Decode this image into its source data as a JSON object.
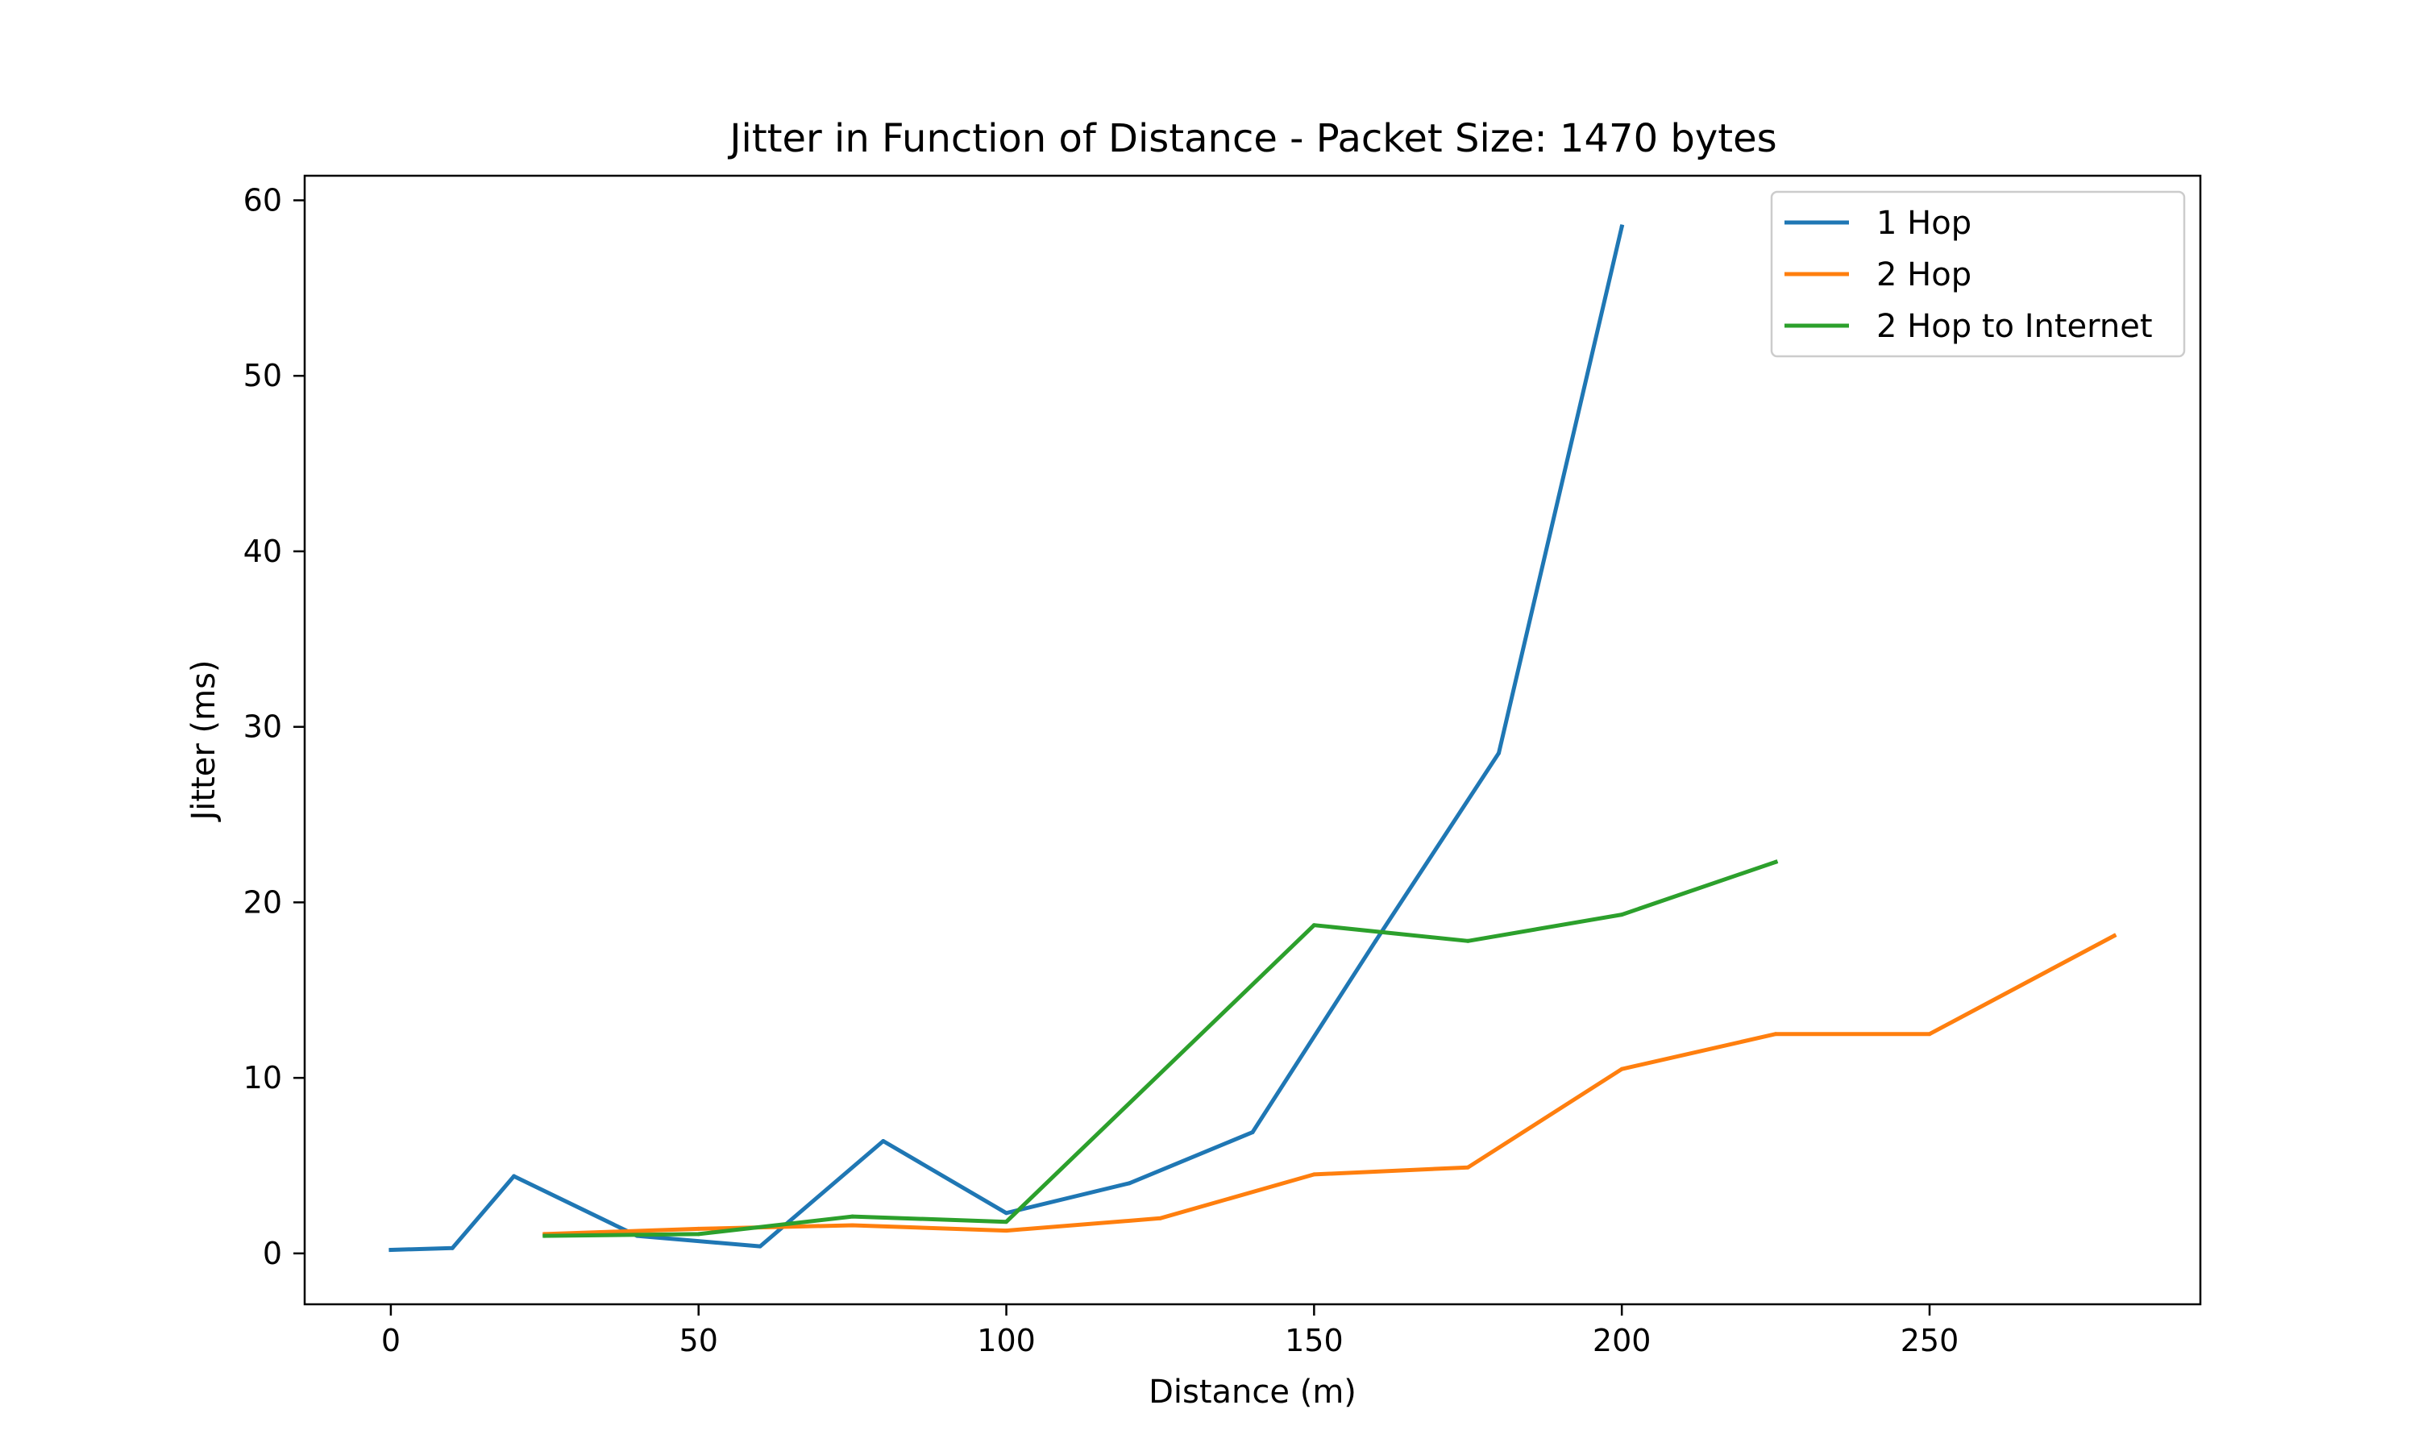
{
  "chart_data": {
    "type": "line",
    "title": "Jitter in Function of Distance - Packet Size: 1470 bytes",
    "xlabel": "Distance (m)",
    "ylabel": "Jitter (ms)",
    "xlim": [
      -14,
      294
    ],
    "ylim": [
      -2.9,
      61.4
    ],
    "xticks": [
      0,
      50,
      100,
      150,
      200,
      250
    ],
    "yticks": [
      0,
      10,
      20,
      30,
      40,
      50,
      60
    ],
    "grid": false,
    "legend_position": "top-right",
    "series": [
      {
        "name": "1 Hop",
        "color": "#1f77b4",
        "x": [
          0,
          10,
          20,
          40,
          60,
          80,
          100,
          120,
          140,
          160,
          180,
          200
        ],
        "y": [
          0.2,
          0.3,
          4.4,
          1.0,
          0.4,
          6.4,
          2.3,
          4.0,
          6.9,
          17.8,
          28.5,
          58.5
        ]
      },
      {
        "name": "2 Hop",
        "color": "#ff7f0e",
        "x": [
          25,
          50,
          75,
          100,
          125,
          150,
          175,
          200,
          225,
          250,
          280
        ],
        "y": [
          1.1,
          1.4,
          1.6,
          1.3,
          2.0,
          4.5,
          4.9,
          10.5,
          12.5,
          12.5,
          18.1
        ]
      },
      {
        "name": "2 Hop to Internet",
        "color": "#2ca02c",
        "x": [
          25,
          50,
          75,
          100,
          150,
          175,
          200,
          225
        ],
        "y": [
          1.0,
          1.1,
          2.1,
          1.8,
          18.7,
          17.8,
          19.3,
          22.3
        ]
      }
    ]
  }
}
